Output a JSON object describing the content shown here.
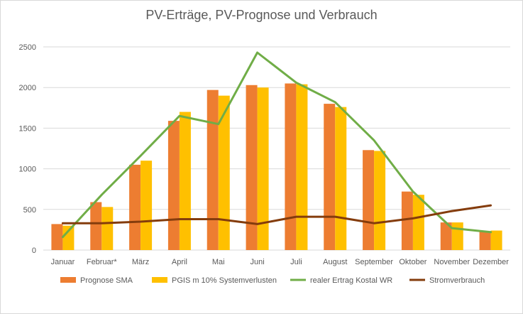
{
  "chart_data": {
    "type": "bar",
    "title": "PV-Erträge, PV-Prognose und Verbrauch",
    "categories": [
      "Januar",
      "Februar*",
      "März",
      "April",
      "Mai",
      "Juni",
      "Juli",
      "August",
      "September",
      "Oktober",
      "November",
      "Dezember"
    ],
    "ylim": [
      0,
      2500
    ],
    "yticks": [
      0,
      500,
      1000,
      1500,
      2000,
      2500
    ],
    "grid": true,
    "legend_position": "bottom",
    "series": [
      {
        "name": "Prognose SMA",
        "type": "bar",
        "color": "#ED7D31",
        "values": [
          320,
          590,
          1050,
          1590,
          1970,
          2030,
          2050,
          1800,
          1230,
          720,
          340,
          230
        ]
      },
      {
        "name": "PGIS m 10% Systemverlusten",
        "type": "bar",
        "color": "#FFC000",
        "values": [
          300,
          530,
          1100,
          1700,
          1900,
          2000,
          2040,
          1760,
          1220,
          680,
          340,
          240
        ]
      },
      {
        "name": "realer Ertrag Kostal WR",
        "type": "line",
        "color": "#70AD47",
        "values": [
          160,
          680,
          1160,
          1650,
          1550,
          2430,
          2060,
          1820,
          1350,
          720,
          270,
          220
        ]
      },
      {
        "name": "Stromverbrauch",
        "type": "line",
        "color": "#843C0C",
        "values": [
          330,
          330,
          350,
          380,
          380,
          320,
          410,
          410,
          330,
          390,
          480,
          550
        ]
      }
    ]
  }
}
